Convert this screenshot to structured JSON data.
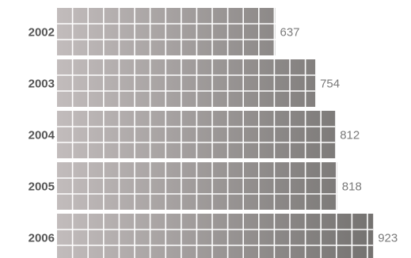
{
  "chart_data": {
    "type": "bar",
    "orientation": "horizontal",
    "categories": [
      "2002",
      "2003",
      "2004",
      "2005",
      "2006"
    ],
    "values": [
      637,
      754,
      812,
      818,
      923
    ],
    "xlim": [
      0,
      1000
    ],
    "grid": false,
    "legend": "none",
    "colors": {
      "bar_start": "#c2bcbc",
      "bar_end": "#6e6c6a",
      "category_label": "#555555",
      "value_label": "#7a7a7a",
      "tile_line": "#ffffff"
    }
  }
}
